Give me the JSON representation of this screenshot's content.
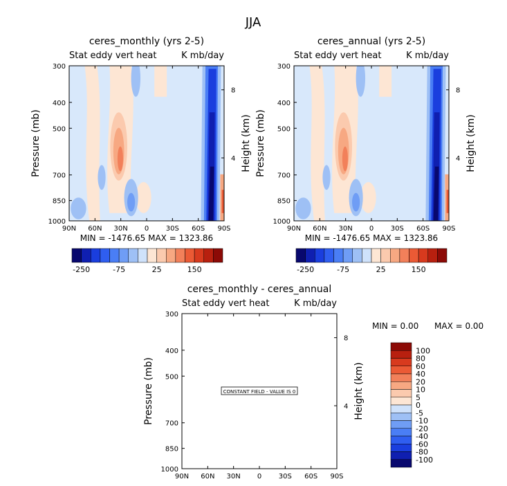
{
  "figure": {
    "title": "JJA"
  },
  "colors": {
    "scale": [
      "#08086e",
      "#0f1fb0",
      "#1a3ede",
      "#2f5ef0",
      "#4a7ef5",
      "#6f9df5",
      "#9ec0f5",
      "#cfe2fb",
      "#fde6d4",
      "#fbcaae",
      "#f7a882",
      "#f2805a",
      "#eb5a35",
      "#d83a1e",
      "#b8200f",
      "#8c0a06"
    ],
    "background_field": "#d8e8fb",
    "box_border": "#000000"
  },
  "chart_data": [
    {
      "type": "heatmap",
      "title": "ceres_monthly (yrs 2-5)",
      "field_label": "Stat eddy vert heat",
      "units": "K mb/day",
      "x_ticks": [
        "90N",
        "60N",
        "30N",
        "0",
        "30S",
        "60S",
        "90S"
      ],
      "y_ticks": [
        "300",
        "400",
        "500",
        "700",
        "850",
        "1000"
      ],
      "y_right_ticks": [
        "8",
        "4"
      ],
      "ylabel": "Pressure (mb)",
      "ylabel_right": "Height (km)",
      "ylim": [
        1000,
        300
      ],
      "xlim": [
        "90N",
        "90S"
      ],
      "stats": "MIN = -1476.65   MAX = 1323.86",
      "colorbar_labels": [
        "-250",
        "-75",
        "25",
        "150"
      ]
    },
    {
      "type": "heatmap",
      "title": "ceres_annual (yrs 2-5)",
      "field_label": "Stat eddy vert heat",
      "units": "K mb/day",
      "x_ticks": [
        "90N",
        "60N",
        "30N",
        "0",
        "30S",
        "60S",
        "90S"
      ],
      "y_ticks": [
        "300",
        "400",
        "500",
        "700",
        "850",
        "1000"
      ],
      "y_right_ticks": [
        "8",
        "4"
      ],
      "ylabel": "Pressure (mb)",
      "ylabel_right": "Height (km)",
      "ylim": [
        1000,
        300
      ],
      "xlim": [
        "90N",
        "90S"
      ],
      "stats": "MIN = -1476.65   MAX = 1323.86",
      "colorbar_labels": [
        "-250",
        "-75",
        "25",
        "150"
      ]
    },
    {
      "type": "heatmap",
      "title": "ceres_monthly - ceres_annual",
      "field_label": "Stat eddy vert heat",
      "units": "K mb/day",
      "x_ticks": [
        "90N",
        "60N",
        "30N",
        "0",
        "30S",
        "60S",
        "90S"
      ],
      "y_ticks": [
        "300",
        "400",
        "500",
        "700",
        "850",
        "1000"
      ],
      "y_right_ticks": [
        "8",
        "4"
      ],
      "ylabel": "Pressure (mb)",
      "ylabel_right": "Height (km)",
      "ylim": [
        1000,
        300
      ],
      "xlim": [
        "90N",
        "90S"
      ],
      "constant_note": "CONSTANT FIELD - VALUE IS 0",
      "stats_min": "MIN =     0.00",
      "stats_max": "MAX =     0.00",
      "colorbar_labels": [
        "100",
        "80",
        "60",
        "40",
        "20",
        "10",
        "5",
        "0",
        "-5",
        "-10",
        "-20",
        "-40",
        "-60",
        "-80",
        "-100"
      ]
    }
  ]
}
